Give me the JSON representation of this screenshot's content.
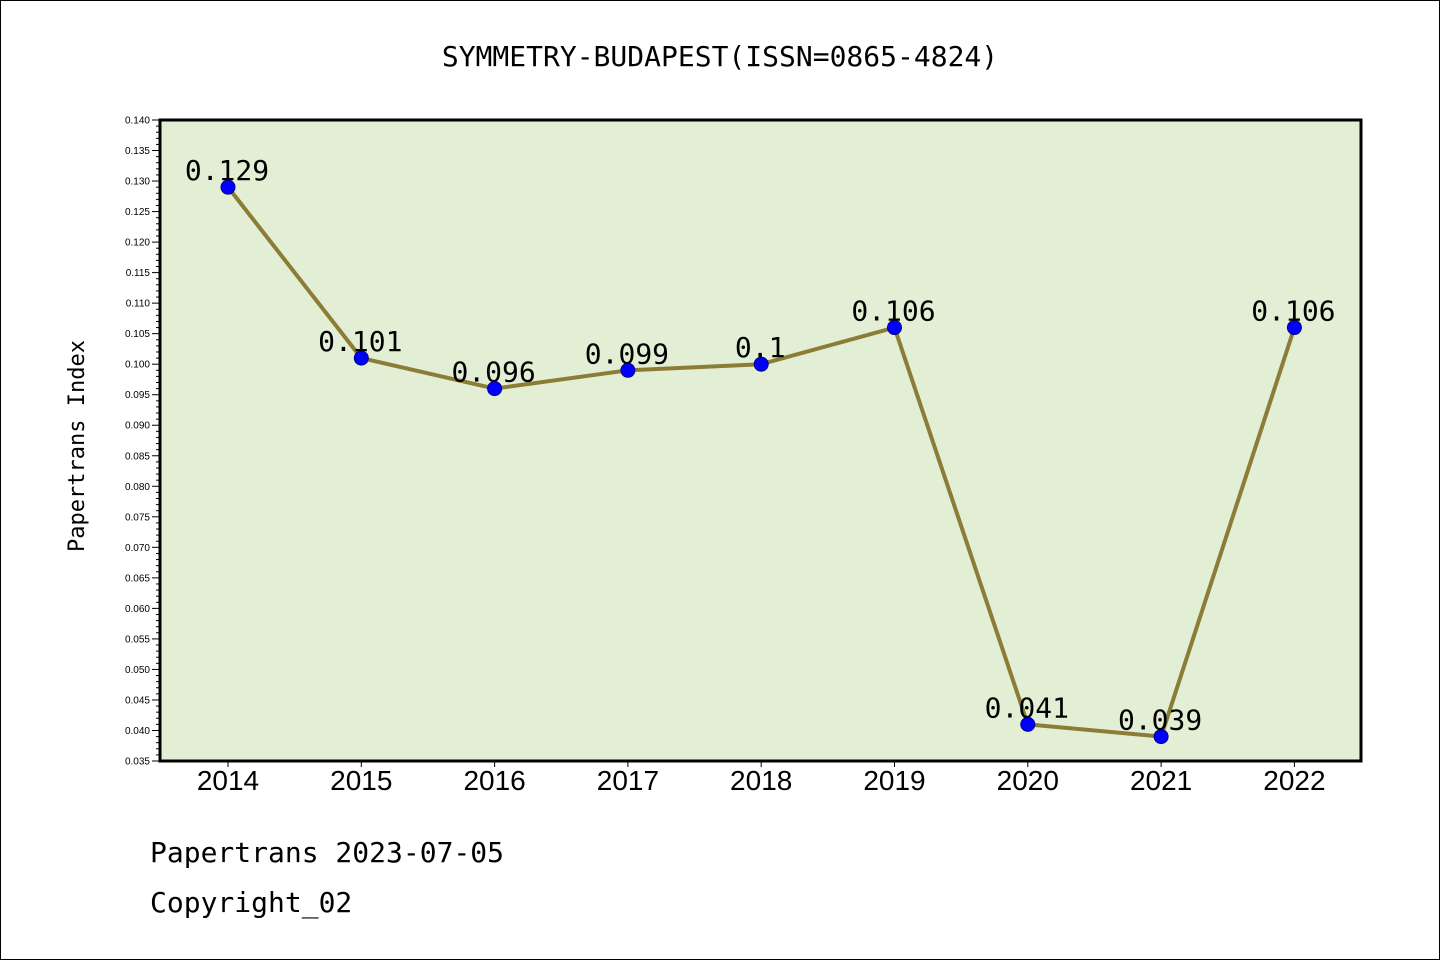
{
  "chart_data": {
    "type": "line",
    "title": "SYMMETRY-BUDAPEST(ISSN=0865-4824)",
    "xlabel": "",
    "ylabel": "Papertrans Index",
    "categories": [
      "2014",
      "2015",
      "2016",
      "2017",
      "2018",
      "2019",
      "2020",
      "2021",
      "2022"
    ],
    "series": [
      {
        "values": [
          0.129,
          0.101,
          0.096,
          0.099,
          0.1,
          0.106,
          0.041,
          0.039,
          0.106
        ],
        "labels": [
          "0.129",
          "0.101",
          "0.096",
          "0.099",
          "0.1",
          "0.106",
          "0.041",
          "0.039",
          "0.106"
        ],
        "line_color": "#8b7d35",
        "marker_color": "#0000ff"
      }
    ],
    "ylim": [
      0.035,
      0.14
    ],
    "yticks": [
      "0.035",
      "0.040",
      "0.045",
      "0.050",
      "0.055",
      "0.060",
      "0.065",
      "0.070",
      "0.075",
      "0.080",
      "0.085",
      "0.090",
      "0.095",
      "0.100",
      "0.105",
      "0.110",
      "0.115",
      "0.120",
      "0.125",
      "0.130",
      "0.135",
      "0.140"
    ],
    "grid": false,
    "plot_background": "#e2efd5"
  },
  "footer": {
    "line1": "Papertrans 2023-07-05",
    "line2": "Copyright_02"
  }
}
